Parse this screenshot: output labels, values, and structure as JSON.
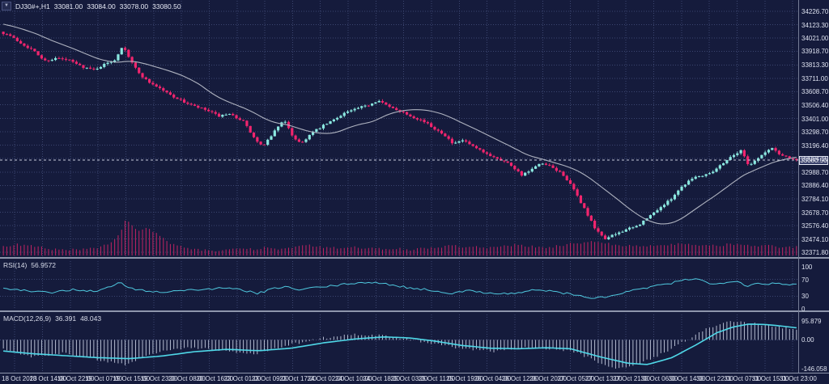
{
  "window": {
    "menu_icon": "▼",
    "symbol_period": "DJ30#+,H1",
    "open": "33081.00",
    "high": "33084.00",
    "low": "33078.00",
    "close": "33080.50"
  },
  "colors": {
    "background": "#151B3C",
    "grid": "#3C4670",
    "candle_up": "#8BE9E1",
    "candle_down": "#F2256E",
    "ma_line": "#AFB3C0",
    "volume": "#C22463",
    "rsi_line": "#4FC8DE",
    "macd_signal": "#4FD8E8",
    "macd_histogram": "#C5CCE0",
    "axis_text": "#DDE1EF",
    "separator": "#8E96AC",
    "current_price_line": "#C7CBDD"
  },
  "price_axis": {
    "labels": [
      "34226.70",
      "34123.30",
      "34021.00",
      "33918.70",
      "33813.30",
      "33711.00",
      "33608.70",
      "33506.40",
      "33401.00",
      "33298.70",
      "33196.40",
      "33094.10",
      "32988.70",
      "32886.40",
      "32784.10",
      "32678.70",
      "32576.40",
      "32474.10",
      "32371.80"
    ],
    "values": [
      34226.7,
      34123.3,
      34021.0,
      33918.7,
      33813.3,
      33711.0,
      33608.7,
      33506.4,
      33401.0,
      33298.7,
      33196.4,
      33094.1,
      32988.7,
      32886.4,
      32784.1,
      32678.7,
      32576.4,
      32474.1,
      32371.8
    ],
    "current": "33080.50",
    "current_value": 33080.5
  },
  "time_axis": {
    "labels": [
      "18 Oct 2023",
      "18 Oct 14:00",
      "18 Oct 22:00",
      "19 Oct 07:00",
      "19 Oct 15:00",
      "19 Oct 23:00",
      "20 Oct 08:00",
      "20 Oct 16:00",
      "23 Oct 01:00",
      "23 Oct 09:00",
      "23 Oct 17:00",
      "24 Oct 02:00",
      "24 Oct 10:00",
      "24 Oct 18:00",
      "25 Oct 03:00",
      "25 Oct 11:00",
      "25 Oct 19:00",
      "26 Oct 04:00",
      "26 Oct 12:00",
      "26 Oct 20:00",
      "27 Oct 05:00",
      "27 Oct 13:00",
      "27 Oct 21:00",
      "30 Oct 06:00",
      "30 Oct 14:00",
      "30 Oct 22:00",
      "31 Oct 07:00",
      "31 Oct 15:00",
      "31 Oct 23:00"
    ]
  },
  "indicators": {
    "rsi": {
      "name": "RSI(14)",
      "value": "56.9572",
      "axis_labels": [
        "100",
        "70",
        "30",
        "0"
      ],
      "axis_values": [
        100,
        70,
        30,
        0
      ],
      "level_lines": [
        70,
        30
      ]
    },
    "macd": {
      "name": "MACD(12,26,9)",
      "value_main": "36.391",
      "value_signal": "48.043",
      "axis_labels": [
        "95.879",
        "0.00",
        "-146.058"
      ],
      "axis_values": [
        95.879,
        0,
        -146.058
      ]
    }
  },
  "chart_data": {
    "type": "candlestick",
    "symbol": "DJ30#+",
    "timeframe": "H1",
    "bars": 229,
    "price_range": [
      32371.8,
      34226.7
    ],
    "current_ohlc": {
      "open": 33081.0,
      "high": 33084.0,
      "low": 33078.0,
      "close": 33080.5
    },
    "moving_average": {
      "type": "sma",
      "period": 24
    },
    "price_path_anchors": [
      [
        0,
        34070
      ],
      [
        12,
        34040
      ],
      [
        25,
        33985
      ],
      [
        40,
        33930
      ],
      [
        55,
        33845
      ],
      [
        70,
        33865
      ],
      [
        85,
        33850
      ],
      [
        100,
        33805
      ],
      [
        115,
        33775
      ],
      [
        130,
        33820
      ],
      [
        142,
        33855
      ],
      [
        152,
        33970
      ],
      [
        158,
        33890
      ],
      [
        170,
        33760
      ],
      [
        182,
        33690
      ],
      [
        196,
        33640
      ],
      [
        210,
        33585
      ],
      [
        225,
        33535
      ],
      [
        240,
        33495
      ],
      [
        255,
        33465
      ],
      [
        270,
        33420
      ],
      [
        285,
        33430
      ],
      [
        300,
        33385
      ],
      [
        315,
        33240
      ],
      [
        325,
        33180
      ],
      [
        335,
        33270
      ],
      [
        350,
        33395
      ],
      [
        362,
        33260
      ],
      [
        372,
        33210
      ],
      [
        385,
        33290
      ],
      [
        398,
        33340
      ],
      [
        412,
        33390
      ],
      [
        425,
        33445
      ],
      [
        440,
        33475
      ],
      [
        455,
        33505
      ],
      [
        468,
        33545
      ],
      [
        480,
        33490
      ],
      [
        495,
        33460
      ],
      [
        508,
        33420
      ],
      [
        522,
        33385
      ],
      [
        535,
        33330
      ],
      [
        548,
        33285
      ],
      [
        560,
        33200
      ],
      [
        572,
        33235
      ],
      [
        585,
        33180
      ],
      [
        600,
        33130
      ],
      [
        615,
        33095
      ],
      [
        630,
        33050
      ],
      [
        645,
        32965
      ],
      [
        655,
        33000
      ],
      [
        668,
        33055
      ],
      [
        680,
        33030
      ],
      [
        695,
        32975
      ],
      [
        708,
        32860
      ],
      [
        722,
        32705
      ],
      [
        736,
        32540
      ],
      [
        748,
        32475
      ],
      [
        760,
        32510
      ],
      [
        772,
        32545
      ],
      [
        785,
        32565
      ],
      [
        798,
        32625
      ],
      [
        812,
        32700
      ],
      [
        826,
        32765
      ],
      [
        840,
        32865
      ],
      [
        855,
        32945
      ],
      [
        868,
        32965
      ],
      [
        882,
        33000
      ],
      [
        895,
        33070
      ],
      [
        908,
        33130
      ],
      [
        916,
        33155
      ],
      [
        925,
        33040
      ],
      [
        934,
        33085
      ],
      [
        944,
        33135
      ],
      [
        954,
        33175
      ],
      [
        964,
        33120
      ],
      [
        974,
        33105
      ],
      [
        986,
        33081
      ]
    ],
    "volume_anchors": [
      [
        0,
        9
      ],
      [
        20,
        12
      ],
      [
        40,
        10
      ],
      [
        60,
        7
      ],
      [
        80,
        5
      ],
      [
        100,
        6
      ],
      [
        120,
        7
      ],
      [
        138,
        14
      ],
      [
        148,
        26
      ],
      [
        155,
        44
      ],
      [
        162,
        36
      ],
      [
        172,
        28
      ],
      [
        182,
        32
      ],
      [
        192,
        26
      ],
      [
        202,
        20
      ],
      [
        212,
        12
      ],
      [
        228,
        8
      ],
      [
        248,
        5
      ],
      [
        268,
        5
      ],
      [
        288,
        7
      ],
      [
        308,
        6
      ],
      [
        328,
        8
      ],
      [
        348,
        6
      ],
      [
        365,
        9
      ],
      [
        380,
        11
      ],
      [
        395,
        9
      ],
      [
        410,
        8
      ],
      [
        425,
        7
      ],
      [
        440,
        9
      ],
      [
        458,
        7
      ],
      [
        475,
        6
      ],
      [
        492,
        7
      ],
      [
        508,
        6
      ],
      [
        525,
        7
      ],
      [
        542,
        9
      ],
      [
        558,
        11
      ],
      [
        575,
        8
      ],
      [
        592,
        9
      ],
      [
        608,
        8
      ],
      [
        625,
        10
      ],
      [
        640,
        12
      ],
      [
        655,
        10
      ],
      [
        670,
        8
      ],
      [
        688,
        10
      ],
      [
        705,
        13
      ],
      [
        722,
        15
      ],
      [
        738,
        17
      ],
      [
        752,
        13
      ],
      [
        768,
        11
      ],
      [
        785,
        10
      ],
      [
        800,
        11
      ],
      [
        815,
        10
      ],
      [
        830,
        12
      ],
      [
        845,
        13
      ],
      [
        860,
        11
      ],
      [
        875,
        10
      ],
      [
        890,
        11
      ],
      [
        905,
        13
      ],
      [
        918,
        11
      ],
      [
        930,
        10
      ],
      [
        942,
        11
      ],
      [
        955,
        10
      ],
      [
        968,
        9
      ],
      [
        980,
        9
      ]
    ],
    "rsi_anchors": [
      [
        0,
        50
      ],
      [
        30,
        43
      ],
      [
        60,
        38
      ],
      [
        90,
        46
      ],
      [
        120,
        41
      ],
      [
        148,
        62
      ],
      [
        160,
        50
      ],
      [
        180,
        42
      ],
      [
        200,
        40
      ],
      [
        225,
        44
      ],
      [
        250,
        46
      ],
      [
        275,
        49
      ],
      [
        300,
        45
      ],
      [
        318,
        36
      ],
      [
        335,
        46
      ],
      [
        352,
        54
      ],
      [
        368,
        44
      ],
      [
        385,
        50
      ],
      [
        405,
        53
      ],
      [
        425,
        58
      ],
      [
        445,
        63
      ],
      [
        465,
        61
      ],
      [
        485,
        57
      ],
      [
        505,
        50
      ],
      [
        525,
        46
      ],
      [
        542,
        41
      ],
      [
        560,
        37
      ],
      [
        578,
        43
      ],
      [
        595,
        40
      ],
      [
        612,
        37
      ],
      [
        630,
        36
      ],
      [
        648,
        40
      ],
      [
        662,
        46
      ],
      [
        680,
        42
      ],
      [
        698,
        37
      ],
      [
        715,
        31
      ],
      [
        735,
        25
      ],
      [
        752,
        29
      ],
      [
        770,
        38
      ],
      [
        790,
        47
      ],
      [
        810,
        54
      ],
      [
        828,
        60
      ],
      [
        845,
        69
      ],
      [
        862,
        73
      ],
      [
        878,
        57
      ],
      [
        895,
        63
      ],
      [
        910,
        68
      ],
      [
        922,
        54
      ],
      [
        935,
        61
      ],
      [
        948,
        59
      ],
      [
        962,
        62
      ],
      [
        975,
        57
      ],
      [
        986,
        57
      ]
    ],
    "macd_signal_anchors": [
      [
        0,
        -55
      ],
      [
        40,
        -70
      ],
      [
        80,
        -80
      ],
      [
        120,
        -90
      ],
      [
        160,
        -95
      ],
      [
        200,
        -82
      ],
      [
        240,
        -60
      ],
      [
        280,
        -48
      ],
      [
        320,
        -55
      ],
      [
        360,
        -42
      ],
      [
        400,
        -15
      ],
      [
        440,
        5
      ],
      [
        475,
        15
      ],
      [
        505,
        10
      ],
      [
        535,
        -5
      ],
      [
        570,
        -28
      ],
      [
        605,
        -42
      ],
      [
        640,
        -45
      ],
      [
        675,
        -40
      ],
      [
        705,
        -45
      ],
      [
        740,
        -85
      ],
      [
        775,
        -118
      ],
      [
        800,
        -125
      ],
      [
        830,
        -90
      ],
      [
        860,
        -25
      ],
      [
        885,
        35
      ],
      [
        905,
        65
      ],
      [
        925,
        80
      ],
      [
        945,
        78
      ],
      [
        965,
        70
      ],
      [
        986,
        60
      ]
    ],
    "macd_hist_anchors": [
      [
        0,
        -45
      ],
      [
        40,
        -85
      ],
      [
        80,
        -65
      ],
      [
        120,
        -100
      ],
      [
        155,
        -125
      ],
      [
        195,
        -60
      ],
      [
        235,
        -38
      ],
      [
        275,
        -55
      ],
      [
        315,
        -70
      ],
      [
        355,
        -28
      ],
      [
        395,
        8
      ],
      [
        435,
        28
      ],
      [
        470,
        22
      ],
      [
        505,
        2
      ],
      [
        540,
        -22
      ],
      [
        575,
        -48
      ],
      [
        610,
        -58
      ],
      [
        645,
        -38
      ],
      [
        680,
        -45
      ],
      [
        710,
        -60
      ],
      [
        735,
        -105
      ],
      [
        760,
        -146
      ],
      [
        785,
        -130
      ],
      [
        815,
        -75
      ],
      [
        845,
        -8
      ],
      [
        875,
        60
      ],
      [
        900,
        95
      ],
      [
        925,
        85
      ],
      [
        950,
        72
      ],
      [
        970,
        62
      ],
      [
        986,
        55
      ]
    ]
  }
}
